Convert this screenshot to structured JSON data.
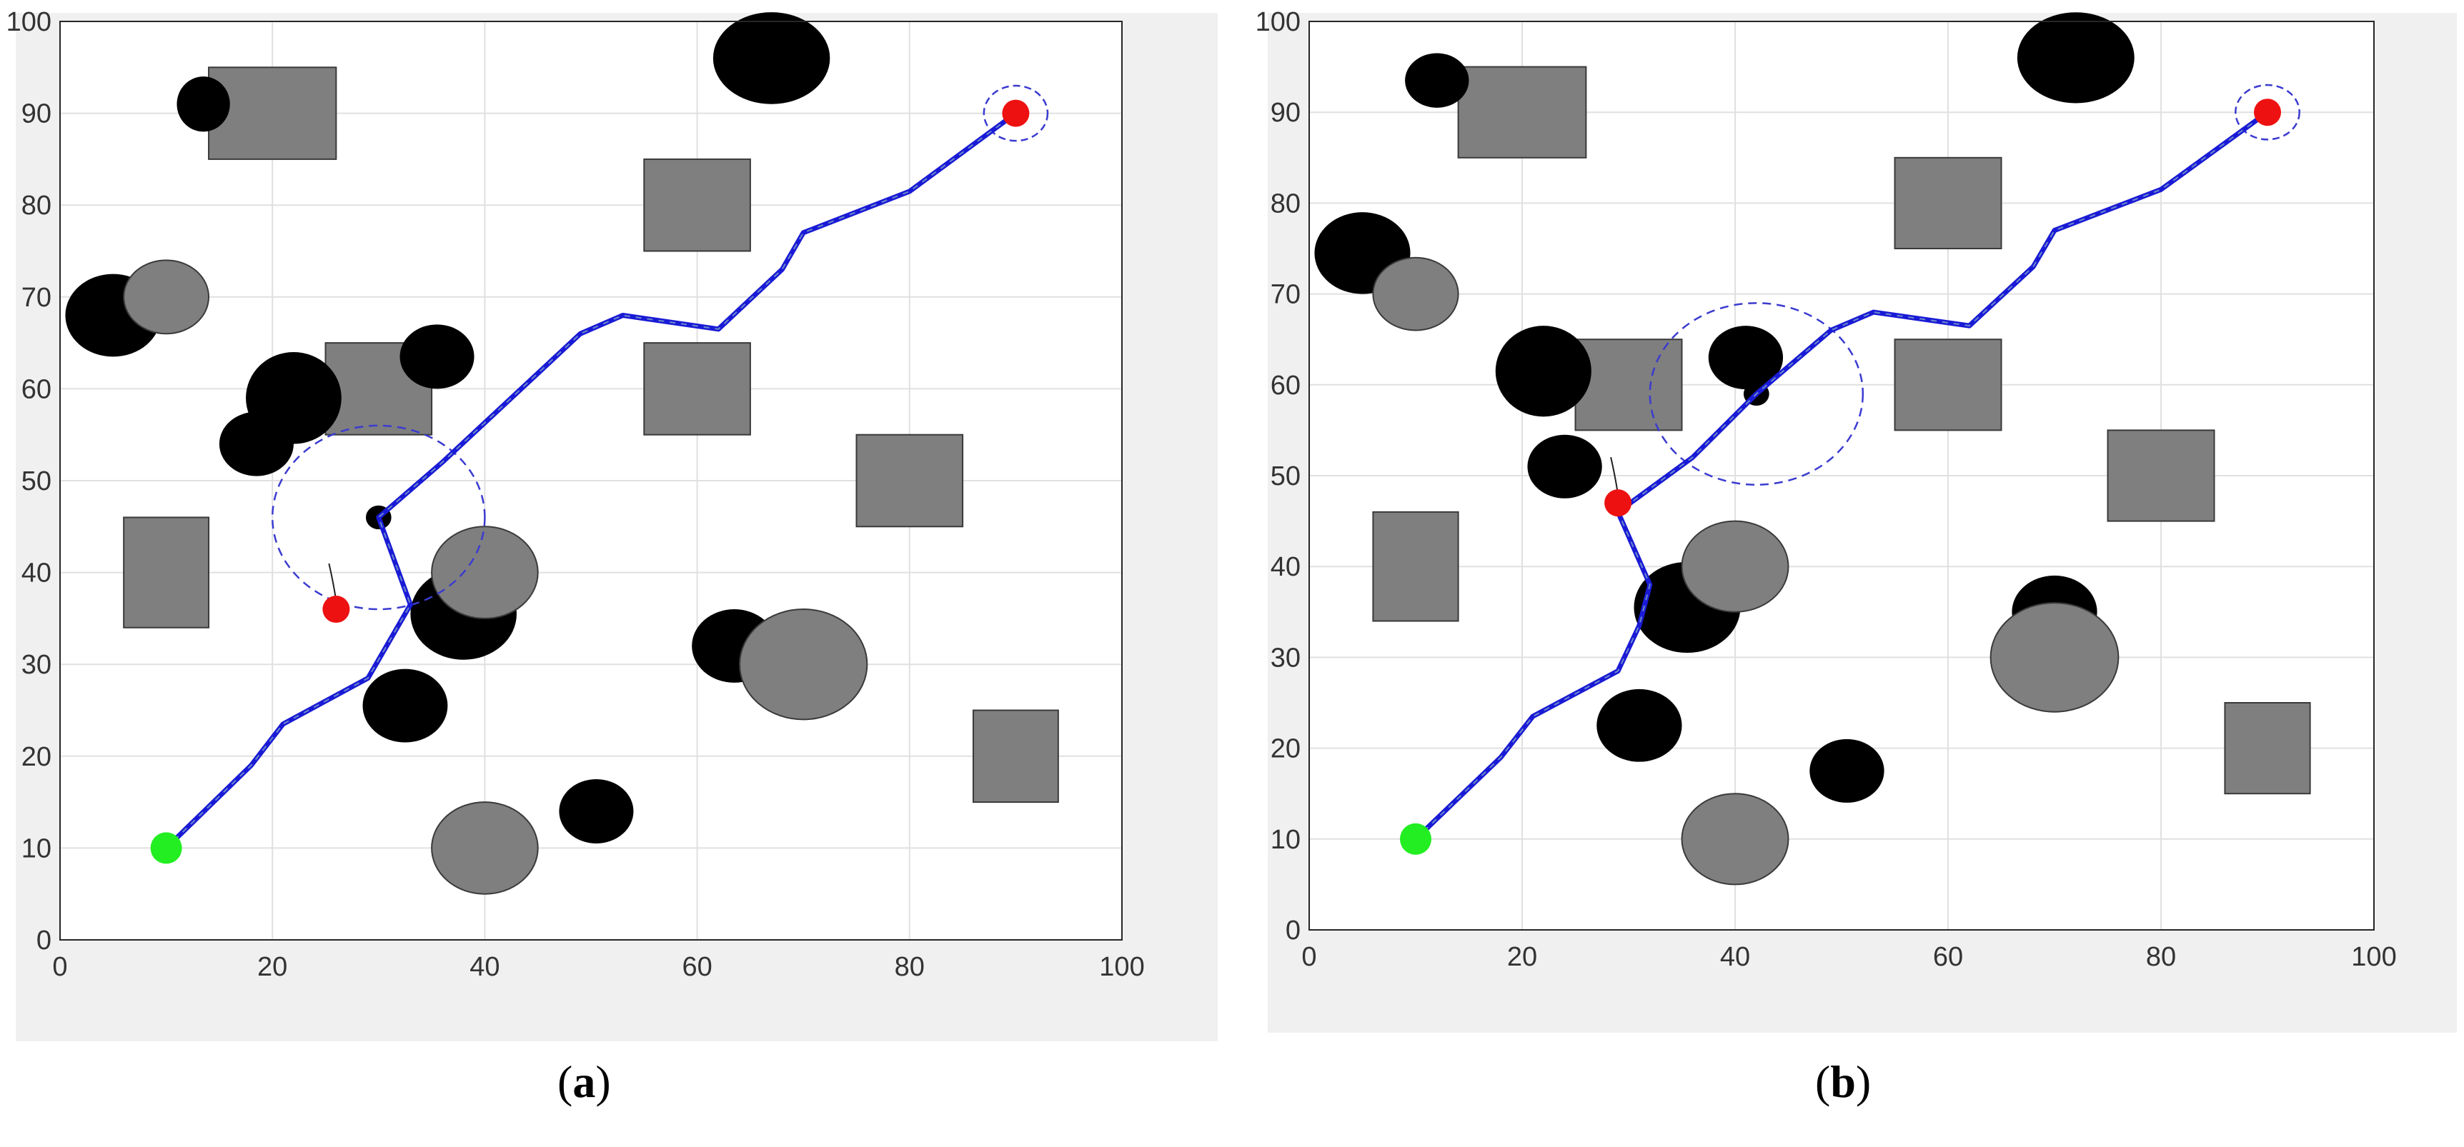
{
  "chart_data": [
    {
      "type": "scatter",
      "panel_label": "(a)",
      "panel_letter": "a",
      "xlim": [
        0,
        100
      ],
      "ylim": [
        0,
        100
      ],
      "xticks": [
        "0",
        "20",
        "40",
        "60",
        "80",
        "100"
      ],
      "yticks": [
        "0",
        "10",
        "20",
        "30",
        "40",
        "50",
        "60",
        "70",
        "80",
        "90",
        "100"
      ],
      "grid": true,
      "colors": {
        "path": "#1a1ad6",
        "static_obstacle": "#7f7f7f",
        "dynamic_obstacle": "#000000",
        "start": "#22ee22",
        "goal": "#ee1111",
        "sensing_range": "#3b3bd0"
      },
      "start": [
        10,
        10
      ],
      "goal": [
        90,
        90
      ],
      "current_position": [
        30,
        46
      ],
      "obstacle_marker": [
        26,
        36
      ],
      "sensing_circle": {
        "center": [
          30,
          46
        ],
        "radius": 10
      },
      "goal_circle": {
        "center": [
          90,
          90
        ],
        "radius": 3
      },
      "path": [
        [
          10,
          10
        ],
        [
          18,
          19
        ],
        [
          21,
          23.5
        ],
        [
          29,
          28.5
        ],
        [
          33,
          36.5
        ],
        [
          30,
          46
        ],
        [
          36,
          52
        ],
        [
          49,
          66
        ],
        [
          53,
          68
        ],
        [
          62,
          66.5
        ],
        [
          68,
          73
        ],
        [
          70,
          77
        ],
        [
          80,
          81.5
        ],
        [
          90,
          90
        ]
      ],
      "rectangles": [
        {
          "x0": 14,
          "y0": 85,
          "x1": 26,
          "y1": 95
        },
        {
          "x0": 25,
          "y0": 55,
          "x1": 35,
          "y1": 65
        },
        {
          "x0": 55,
          "y0": 75,
          "x1": 65,
          "y1": 85
        },
        {
          "x0": 55,
          "y0": 55,
          "x1": 65,
          "y1": 65
        },
        {
          "x0": 75,
          "y0": 45,
          "x1": 85,
          "y1": 55
        },
        {
          "x0": 6,
          "y0": 34,
          "x1": 14,
          "y1": 46
        },
        {
          "x0": 86,
          "y0": 15,
          "x1": 94,
          "y1": 25
        }
      ],
      "black_ellipses": [
        {
          "cx": 13.5,
          "cy": 91,
          "rx": 2.5,
          "ry": 3
        },
        {
          "cx": 67,
          "cy": 96,
          "rx": 5.5,
          "ry": 5
        },
        {
          "cx": 5,
          "cy": 68,
          "rx": 4.5,
          "ry": 4.5
        },
        {
          "cx": 22,
          "cy": 59,
          "rx": 4.5,
          "ry": 5
        },
        {
          "cx": 35.5,
          "cy": 63.5,
          "rx": 3.5,
          "ry": 3.5
        },
        {
          "cx": 18.5,
          "cy": 54,
          "rx": 3.5,
          "ry": 3.5
        },
        {
          "cx": 38,
          "cy": 35.5,
          "rx": 5,
          "ry": 5
        },
        {
          "cx": 32.5,
          "cy": 25.5,
          "rx": 4,
          "ry": 4
        },
        {
          "cx": 63.5,
          "cy": 32,
          "rx": 4,
          "ry": 4
        },
        {
          "cx": 50.5,
          "cy": 14,
          "rx": 3.5,
          "ry": 3.5
        },
        {
          "cx": 30,
          "cy": 46,
          "rx": 1.2,
          "ry": 1.3
        }
      ],
      "gray_ellipses": [
        {
          "cx": 10,
          "cy": 70,
          "rx": 4,
          "ry": 4
        },
        {
          "cx": 40,
          "cy": 40,
          "rx": 5,
          "ry": 5
        },
        {
          "cx": 70,
          "cy": 30,
          "rx": 6,
          "ry": 6
        },
        {
          "cx": 40,
          "cy": 10,
          "rx": 5,
          "ry": 5
        }
      ]
    },
    {
      "type": "scatter",
      "panel_label": "(b)",
      "panel_letter": "b",
      "xlim": [
        0,
        100
      ],
      "ylim": [
        0,
        100
      ],
      "xticks": [
        "0",
        "20",
        "40",
        "60",
        "80",
        "100"
      ],
      "yticks": [
        "0",
        "10",
        "20",
        "30",
        "40",
        "50",
        "60",
        "70",
        "80",
        "90",
        "100"
      ],
      "grid": true,
      "colors": {
        "path": "#1a1ad6",
        "static_obstacle": "#7f7f7f",
        "dynamic_obstacle": "#000000",
        "start": "#22ee22",
        "goal": "#ee1111",
        "sensing_range": "#3b3bd0"
      },
      "start": [
        10,
        10
      ],
      "goal": [
        90,
        90
      ],
      "current_position": [
        42,
        59
      ],
      "obstacle_marker": [
        29,
        47
      ],
      "sensing_circle": {
        "center": [
          42,
          59
        ],
        "radius": 10
      },
      "goal_circle": {
        "center": [
          90,
          90
        ],
        "radius": 3
      },
      "path": [
        [
          10,
          10
        ],
        [
          18,
          19
        ],
        [
          21,
          23.5
        ],
        [
          29,
          28.5
        ],
        [
          31,
          33.5
        ],
        [
          32,
          38
        ],
        [
          29,
          46
        ],
        [
          36,
          52
        ],
        [
          42,
          59
        ],
        [
          49,
          66
        ],
        [
          53,
          68
        ],
        [
          62,
          66.5
        ],
        [
          68,
          73
        ],
        [
          70,
          77
        ],
        [
          80,
          81.5
        ],
        [
          90,
          90
        ]
      ],
      "rectangles": [
        {
          "x0": 14,
          "y0": 85,
          "x1": 26,
          "y1": 95
        },
        {
          "x0": 25,
          "y0": 55,
          "x1": 35,
          "y1": 65
        },
        {
          "x0": 55,
          "y0": 75,
          "x1": 65,
          "y1": 85
        },
        {
          "x0": 55,
          "y0": 55,
          "x1": 65,
          "y1": 65
        },
        {
          "x0": 75,
          "y0": 45,
          "x1": 85,
          "y1": 55
        },
        {
          "x0": 6,
          "y0": 34,
          "x1": 14,
          "y1": 46
        },
        {
          "x0": 86,
          "y0": 15,
          "x1": 94,
          "y1": 25
        }
      ],
      "black_ellipses": [
        {
          "cx": 12,
          "cy": 93.5,
          "rx": 3,
          "ry": 3
        },
        {
          "cx": 72,
          "cy": 96,
          "rx": 5.5,
          "ry": 5
        },
        {
          "cx": 5,
          "cy": 74.5,
          "rx": 4.5,
          "ry": 4.5
        },
        {
          "cx": 22,
          "cy": 61.5,
          "rx": 4.5,
          "ry": 5
        },
        {
          "cx": 41,
          "cy": 63,
          "rx": 3.5,
          "ry": 3.5
        },
        {
          "cx": 24,
          "cy": 51,
          "rx": 3.5,
          "ry": 3.5
        },
        {
          "cx": 35.5,
          "cy": 35.5,
          "rx": 5,
          "ry": 5
        },
        {
          "cx": 31,
          "cy": 22.5,
          "rx": 4,
          "ry": 4
        },
        {
          "cx": 70,
          "cy": 35,
          "rx": 4,
          "ry": 4
        },
        {
          "cx": 50.5,
          "cy": 17.5,
          "rx": 3.5,
          "ry": 3.5
        },
        {
          "cx": 42,
          "cy": 59,
          "rx": 1.2,
          "ry": 1.3
        }
      ],
      "gray_ellipses": [
        {
          "cx": 10,
          "cy": 70,
          "rx": 4,
          "ry": 4
        },
        {
          "cx": 40,
          "cy": 40,
          "rx": 5,
          "ry": 5
        },
        {
          "cx": 70,
          "cy": 30,
          "rx": 6,
          "ry": 6
        },
        {
          "cx": 40,
          "cy": 10,
          "rx": 5,
          "ry": 5
        }
      ]
    }
  ]
}
